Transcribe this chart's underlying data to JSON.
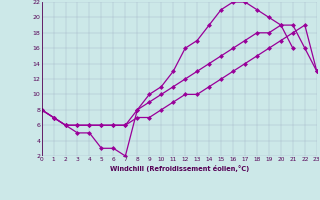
{
  "bg_color": "#cce8e8",
  "line_color": "#990099",
  "grid_color": "#aabbbb",
  "xlabel": "Windchill (Refroidissement éolien,°C)",
  "xlim": [
    0,
    23
  ],
  "ylim": [
    2,
    22
  ],
  "xticks": [
    0,
    1,
    2,
    3,
    4,
    5,
    6,
    7,
    8,
    9,
    10,
    11,
    12,
    13,
    14,
    15,
    16,
    17,
    18,
    19,
    20,
    21,
    22,
    23
  ],
  "yticks": [
    2,
    4,
    6,
    8,
    10,
    12,
    14,
    16,
    18,
    20,
    22
  ],
  "curve1_x": [
    0,
    1,
    2,
    3,
    4,
    5,
    6,
    7,
    8,
    9,
    10,
    11,
    12,
    13,
    14,
    15,
    16,
    17,
    18,
    19,
    20,
    21
  ],
  "curve1_y": [
    8,
    7,
    6,
    5,
    5,
    3,
    3,
    2,
    8,
    10,
    11,
    13,
    16,
    17,
    19,
    21,
    22,
    22,
    21,
    20,
    19,
    16
  ],
  "curve2_x": [
    0,
    1,
    2,
    3,
    4,
    5,
    6,
    7,
    8,
    9,
    10,
    11,
    12,
    13,
    14,
    15,
    16,
    17,
    18,
    19,
    20,
    21,
    22,
    23
  ],
  "curve2_y": [
    8,
    7,
    6,
    6,
    6,
    6,
    6,
    6,
    7,
    7,
    8,
    9,
    10,
    10,
    11,
    12,
    13,
    14,
    15,
    16,
    17,
    18,
    19,
    13
  ],
  "curve3_x": [
    0,
    1,
    2,
    3,
    4,
    5,
    6,
    7,
    8,
    9,
    10,
    11,
    12,
    13,
    14,
    15,
    16,
    17,
    18,
    19,
    20,
    21,
    22,
    23
  ],
  "curve3_y": [
    8,
    7,
    6,
    6,
    6,
    6,
    6,
    6,
    8,
    9,
    10,
    11,
    12,
    13,
    14,
    15,
    16,
    17,
    18,
    18,
    19,
    19,
    16,
    13
  ]
}
